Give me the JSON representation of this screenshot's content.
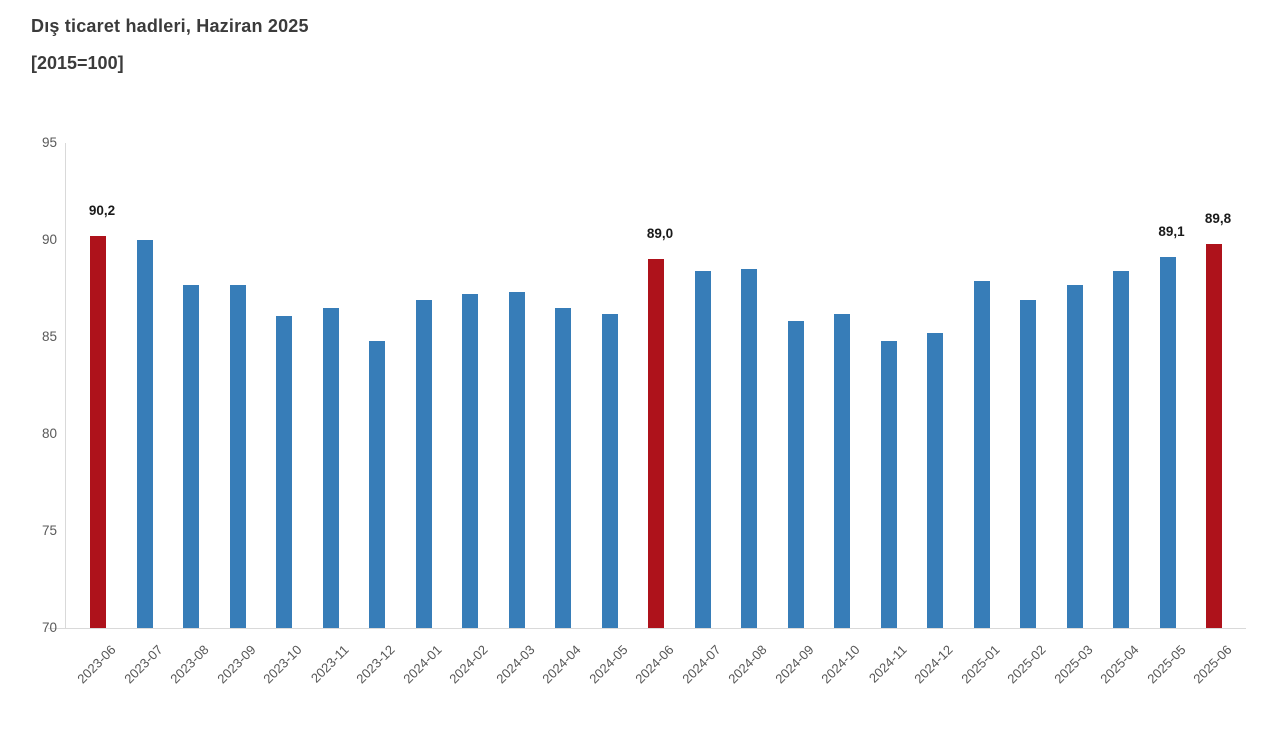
{
  "header": {
    "title": "Dış ticaret hadleri, Haziran 2025",
    "subtitle": "[2015=100]"
  },
  "chart_data": {
    "type": "bar",
    "title": "Dış ticaret hadleri, Haziran 2025",
    "subtitle": "[2015=100]",
    "categories": [
      "2023-06",
      "2023-07",
      "2023-08",
      "2023-09",
      "2023-10",
      "2023-11",
      "2023-12",
      "2024-01",
      "2024-02",
      "2024-03",
      "2024-04",
      "2024-05",
      "2024-06",
      "2024-07",
      "2024-08",
      "2024-09",
      "2024-10",
      "2024-11",
      "2024-12",
      "2025-01",
      "2025-02",
      "2025-03",
      "2025-04",
      "2025-05",
      "2025-06"
    ],
    "values": [
      90.2,
      90.0,
      87.7,
      87.7,
      86.1,
      86.5,
      84.8,
      86.9,
      87.2,
      87.3,
      86.5,
      86.2,
      89.0,
      88.4,
      88.5,
      85.8,
      86.2,
      84.8,
      85.2,
      87.9,
      86.9,
      87.7,
      88.4,
      89.1,
      89.8
    ],
    "highlight_indices": [
      0,
      12,
      24
    ],
    "point_labels": [
      {
        "index": 0,
        "text": "90,2"
      },
      {
        "index": 12,
        "text": "89,0"
      },
      {
        "index": 23,
        "text": "89,1"
      },
      {
        "index": 24,
        "text": "89,8"
      }
    ],
    "ylim": [
      70,
      95
    ],
    "yticks": [
      "70",
      "75",
      "80",
      "85",
      "90",
      "95"
    ],
    "xlabel": "",
    "ylabel": "",
    "grid": false,
    "legend": null,
    "colors": {
      "bar": "#377db8",
      "highlight": "#ae121b",
      "axis_line": "#d9d9d9",
      "tick_text": "#595959",
      "value_text": "#1a1a1a",
      "title_text": "#3b3b3b"
    }
  }
}
